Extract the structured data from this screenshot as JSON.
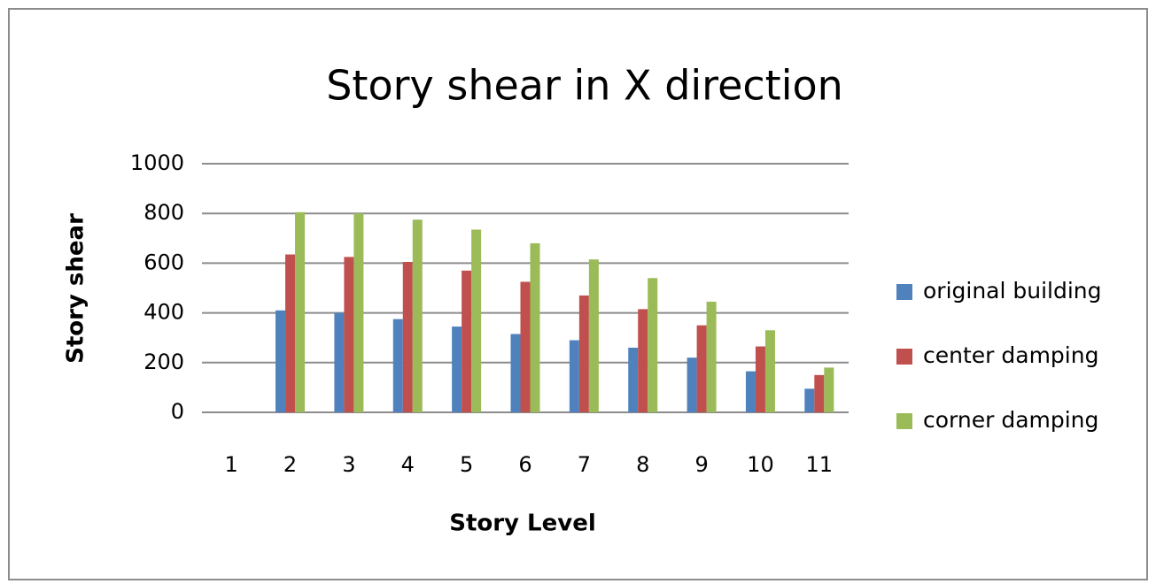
{
  "chart_data": {
    "type": "bar",
    "title": "Story shear in X direction",
    "x_label": "Story Level",
    "y_label": "Story shear",
    "categories": [
      "1",
      "2",
      "3",
      "4",
      "5",
      "6",
      "7",
      "8",
      "9",
      "10",
      "11"
    ],
    "series": [
      {
        "name": "original building",
        "color": "#4f81bd",
        "values": [
          0,
          410,
          400,
          375,
          345,
          315,
          290,
          260,
          220,
          165,
          95
        ]
      },
      {
        "name": "center damping",
        "color": "#c0504d",
        "values": [
          0,
          635,
          625,
          605,
          570,
          525,
          470,
          415,
          350,
          265,
          150
        ]
      },
      {
        "name": "corner damping",
        "color": "#9bbb59",
        "values": [
          0,
          805,
          800,
          775,
          735,
          680,
          615,
          540,
          445,
          330,
          180
        ]
      }
    ],
    "ylim": [
      0,
      1000
    ],
    "yticks": [
      0,
      200,
      400,
      600,
      800,
      1000
    ],
    "grid": true,
    "legend": "right"
  }
}
